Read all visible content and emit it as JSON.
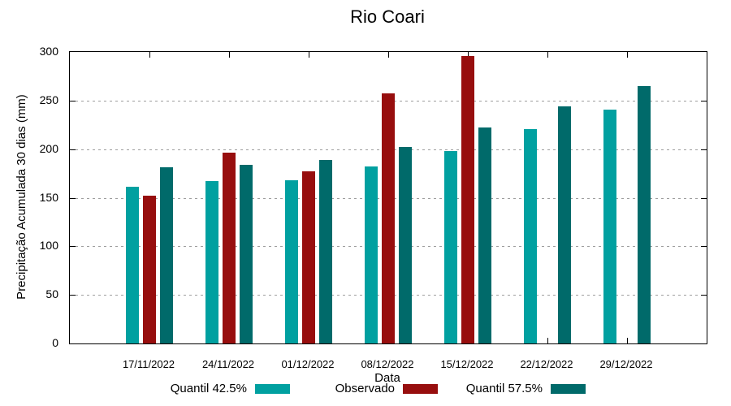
{
  "chart_data": {
    "type": "bar",
    "title": "Rio Coari",
    "xlabel": "Data",
    "ylabel": "Precipitação Acumulada 30 dias (mm)",
    "ylim": [
      0,
      300
    ],
    "yticks": [
      0,
      50,
      100,
      150,
      200,
      250,
      300
    ],
    "grid": true,
    "legend_position": "bottom",
    "categories": [
      "17/11/2022",
      "24/11/2022",
      "01/12/2022",
      "08/12/2022",
      "15/12/2022",
      "22/12/2022",
      "29/12/2022"
    ],
    "series": [
      {
        "name": "Quantil 42.5%",
        "color": "#00A0A0",
        "values": [
          161,
          167,
          168,
          182,
          198,
          221,
          241
        ]
      },
      {
        "name": "Observado",
        "color": "#970E0E",
        "values": [
          152,
          196,
          177,
          257,
          296,
          null,
          null
        ]
      },
      {
        "name": "Quantil 57.5%",
        "color": "#006A6A",
        "values": [
          181,
          184,
          189,
          202,
          222,
          244,
          265
        ]
      }
    ],
    "colors": {
      "grid": "#9e9e9e",
      "axis": "#000000",
      "background": "#ffffff"
    }
  }
}
